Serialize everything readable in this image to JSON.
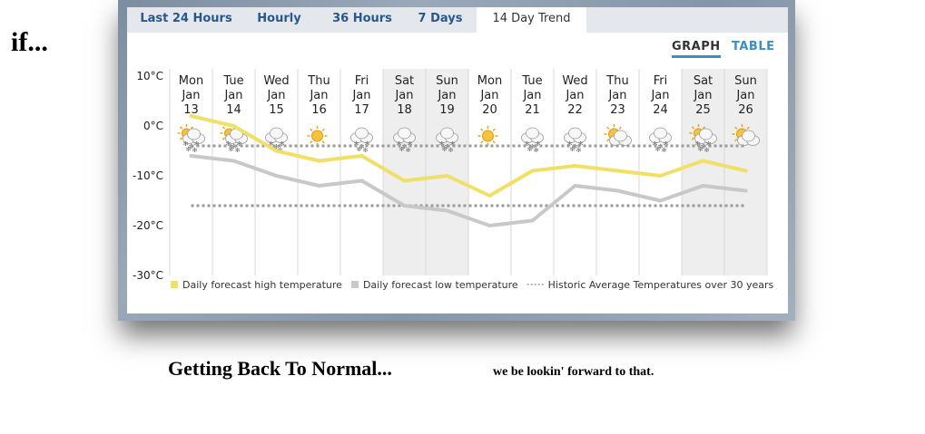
{
  "intro_text": "if...",
  "tabs": [
    "Last 24 Hours",
    "Hourly",
    "36 Hours",
    "7 Days",
    "14 Day Trend"
  ],
  "active_tab": "14 Day Trend",
  "view_toggle": {
    "graph_label": "GRAPH",
    "table_label": "TABLE"
  },
  "caption_left": "Getting Back To Normal...",
  "caption_right": "we be lookin' forward to that.",
  "colors": {
    "high": "#f0e068",
    "low": "#c8c8c8",
    "historic": "#9a9a9a",
    "link": "#3a8fc4",
    "tab_text": "#27578f"
  },
  "chart_data": {
    "type": "line",
    "days": [
      {
        "dow": "Mon",
        "month": "Jan",
        "date": "13",
        "icon": "snow-sun-icon",
        "weekend": false
      },
      {
        "dow": "Tue",
        "month": "Jan",
        "date": "14",
        "icon": "snow-sun-icon",
        "weekend": false
      },
      {
        "dow": "Wed",
        "month": "Jan",
        "date": "15",
        "icon": "snow-cloud-icon",
        "weekend": false
      },
      {
        "dow": "Thu",
        "month": "Jan",
        "date": "16",
        "icon": "sun-icon",
        "weekend": false
      },
      {
        "dow": "Fri",
        "month": "Jan",
        "date": "17",
        "icon": "snow-cloud-icon",
        "weekend": false
      },
      {
        "dow": "Sat",
        "month": "Jan",
        "date": "18",
        "icon": "snow-cloud-icon",
        "weekend": true
      },
      {
        "dow": "Sun",
        "month": "Jan",
        "date": "19",
        "icon": "snow-cloud-icon",
        "weekend": true
      },
      {
        "dow": "Mon",
        "month": "Jan",
        "date": "20",
        "icon": "sun-icon",
        "weekend": false
      },
      {
        "dow": "Tue",
        "month": "Jan",
        "date": "21",
        "icon": "snow-cloud-icon",
        "weekend": false
      },
      {
        "dow": "Wed",
        "month": "Jan",
        "date": "22",
        "icon": "snow-cloud-icon",
        "weekend": false
      },
      {
        "dow": "Thu",
        "month": "Jan",
        "date": "23",
        "icon": "sun-cloud-icon",
        "weekend": false
      },
      {
        "dow": "Fri",
        "month": "Jan",
        "date": "24",
        "icon": "snow-cloud-icon",
        "weekend": false
      },
      {
        "dow": "Sat",
        "month": "Jan",
        "date": "25",
        "icon": "snow-sun-icon",
        "weekend": true
      },
      {
        "dow": "Sun",
        "month": "Jan",
        "date": "26",
        "icon": "sun-cloud-icon",
        "weekend": true
      }
    ],
    "y_ticks": [
      {
        "value": 10,
        "label": "10°C"
      },
      {
        "value": 0,
        "label": "0°C"
      },
      {
        "value": -10,
        "label": "-10°C"
      },
      {
        "value": -20,
        "label": "-20°C"
      },
      {
        "value": -30,
        "label": "-30°C"
      }
    ],
    "ylim": [
      -30,
      10
    ],
    "series": [
      {
        "name": "Daily forecast high temperature",
        "key": "high",
        "values": [
          2,
          0,
          -5,
          -7,
          -6,
          -11,
          -10,
          -14,
          -9,
          -8,
          -9,
          -10,
          -7,
          -9
        ]
      },
      {
        "name": "Daily forecast low temperature",
        "key": "low",
        "values": [
          -6,
          -7,
          -10,
          -12,
          -11,
          -16,
          -17,
          -20,
          -19,
          -12,
          -13,
          -15,
          -12,
          -13
        ]
      },
      {
        "name": "Historic Average Temperatures over 30 years",
        "key": "historic",
        "values": [
          [
            -4,
            -4
          ],
          [
            -16,
            -16
          ]
        ]
      }
    ],
    "legend": [
      {
        "label": "Daily forecast high temperature",
        "swatch": "square",
        "key": "high"
      },
      {
        "label": "Daily forecast low temperature",
        "swatch": "square",
        "key": "low"
      },
      {
        "label": "Historic Average Temperatures over 30 years",
        "swatch": "dots",
        "key": "historic"
      }
    ],
    "legend_position": "bottom",
    "grid": true
  }
}
